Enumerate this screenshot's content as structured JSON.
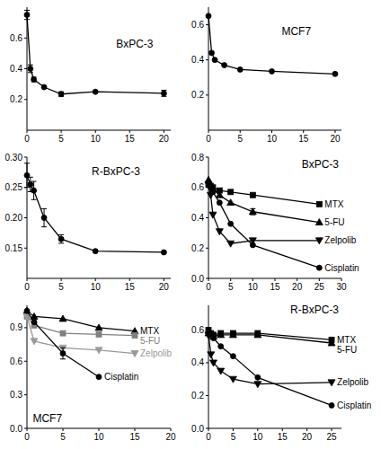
{
  "chart_data": [
    {
      "type": "line",
      "title": "BxPC-3",
      "x": [
        0,
        0.5,
        1,
        2.5,
        5,
        10,
        20
      ],
      "values": [
        0.75,
        0.4,
        0.33,
        0.28,
        0.235,
        0.25,
        0.24
      ],
      "errors": [
        0.03,
        0.025,
        0.015,
        null,
        0.015,
        null,
        0.02
      ],
      "color": "#000000",
      "marker": "circle",
      "xlim": [
        0,
        21
      ],
      "xticks": [
        0,
        5,
        10,
        15,
        20
      ],
      "ylim": [
        0,
        0.8
      ],
      "yticks": [
        0.2,
        0.4,
        0.6
      ]
    },
    {
      "type": "line",
      "title": "MCF7",
      "x": [
        0,
        0.5,
        1,
        2.5,
        5,
        10,
        20
      ],
      "values": [
        0.65,
        0.44,
        0.4,
        0.37,
        0.345,
        0.335,
        0.32
      ],
      "color": "#000000",
      "marker": "circle",
      "xlim": [
        0,
        21
      ],
      "xticks": [
        0,
        5,
        10,
        15,
        20
      ],
      "ylim": [
        0,
        0.7
      ],
      "yticks": [
        0.2,
        0.4,
        0.6
      ]
    },
    {
      "type": "line",
      "title": "R-BxPC-3",
      "x": [
        0,
        0.5,
        1,
        2.5,
        5,
        10,
        20
      ],
      "values": [
        0.27,
        0.255,
        0.245,
        0.2,
        0.165,
        0.145,
        0.143
      ],
      "errors": [
        0.02,
        0.012,
        0.015,
        0.015,
        0.007,
        null,
        null
      ],
      "color": "#000000",
      "marker": "circle",
      "xlim": [
        0,
        21
      ],
      "xticks": [
        0,
        5,
        10,
        15,
        20
      ],
      "ylim": [
        0.1,
        0.3
      ],
      "yticks": [
        {
          "value": 0.15,
          "label": "0.15"
        },
        {
          "value": 0.2,
          "label": "0.20"
        },
        {
          "value": 0.25,
          "label": "0.25"
        },
        {
          "value": 0.3,
          "label": "0.30"
        }
      ]
    },
    {
      "type": "line",
      "title": "BxPC-3",
      "x": [
        0,
        0.5,
        1,
        2.5,
        5,
        10,
        25
      ],
      "series": [
        {
          "name": "MTX",
          "color": "#000000",
          "marker": "square",
          "values": [
            0.62,
            0.61,
            0.6,
            0.58,
            0.57,
            0.55,
            0.49
          ]
        },
        {
          "name": "5-FU",
          "color": "#000000",
          "marker": "triangle",
          "values": [
            0.65,
            0.62,
            0.59,
            0.55,
            0.5,
            0.44,
            0.37
          ],
          "errors": [
            null,
            null,
            null,
            null,
            null,
            0.02,
            null
          ]
        },
        {
          "name": "Zelpolib",
          "color": "#000000",
          "marker": "triangle-down",
          "values": [
            0.62,
            0.55,
            0.42,
            0.31,
            0.23,
            0.25,
            0.25
          ]
        },
        {
          "name": "Cisplatin",
          "color": "#000000",
          "marker": "circle",
          "values": [
            0.63,
            0.6,
            0.57,
            0.5,
            0.36,
            0.22,
            0.07
          ]
        }
      ],
      "xlim": [
        0,
        30
      ],
      "xticks": [
        0,
        5,
        10,
        15,
        20,
        25,
        30
      ],
      "ylim": [
        0,
        0.8
      ],
      "yticks": [
        {
          "value": 0,
          "label": "0.0"
        },
        0.2,
        0.4,
        0.6,
        0.8
      ]
    },
    {
      "type": "line",
      "title": "MCF7",
      "x": [
        0,
        1,
        5,
        10,
        15
      ],
      "series": [
        {
          "name": "MTX",
          "color": "#000000",
          "marker": "triangle",
          "values": [
            1.05,
            1.0,
            0.98,
            0.9,
            0.87
          ]
        },
        {
          "name": "5-FU",
          "color": "#808080",
          "marker": "square",
          "values": [
            1.0,
            0.92,
            0.85,
            0.84,
            0.83
          ]
        },
        {
          "name": "Zelpolib",
          "color": "#999999",
          "marker": "triangle-down",
          "values": [
            1.0,
            0.78,
            0.72,
            0.7,
            0.67
          ]
        },
        {
          "name": "Cisplatin",
          "color": "#000000",
          "marker": "circle",
          "values": [
            1.05,
            0.95,
            0.67,
            0.46,
            null
          ],
          "errors": [
            null,
            null,
            0.05,
            null,
            null
          ]
        }
      ],
      "xlim": [
        0,
        20
      ],
      "xticks": [
        0,
        5,
        10,
        15,
        20
      ],
      "ylim": [
        0,
        1.1
      ],
      "yticks": [
        {
          "value": 0,
          "label": "0.0"
        },
        0.3,
        0.6,
        0.9
      ]
    },
    {
      "type": "line",
      "title": "R-BxPC-3",
      "x": [
        0,
        0.5,
        1,
        2.5,
        5,
        10,
        25
      ],
      "series": [
        {
          "name": "MTX",
          "color": "#000000",
          "marker": "square",
          "values": [
            0.6,
            0.58,
            0.57,
            0.58,
            0.58,
            0.58,
            0.54
          ]
        },
        {
          "name": "5-FU",
          "color": "#000000",
          "marker": "triangle",
          "values": [
            0.58,
            0.57,
            0.56,
            0.57,
            0.57,
            0.57,
            0.52
          ]
        },
        {
          "name": "Zelpolib",
          "color": "#000000",
          "marker": "triangle-down",
          "values": [
            0.57,
            0.45,
            0.4,
            0.35,
            0.3,
            0.27,
            0.28
          ]
        },
        {
          "name": "Cisplatin",
          "color": "#000000",
          "marker": "circle",
          "values": [
            0.58,
            0.57,
            0.55,
            0.5,
            0.44,
            0.31,
            0.14
          ]
        }
      ],
      "xlim": [
        0,
        27
      ],
      "xticks": [
        0,
        5,
        10,
        15,
        20,
        25
      ],
      "ylim": [
        0,
        0.75
      ],
      "yticks": [
        {
          "value": 0,
          "label": "0.0"
        },
        0.2,
        0.4,
        0.6
      ]
    }
  ]
}
